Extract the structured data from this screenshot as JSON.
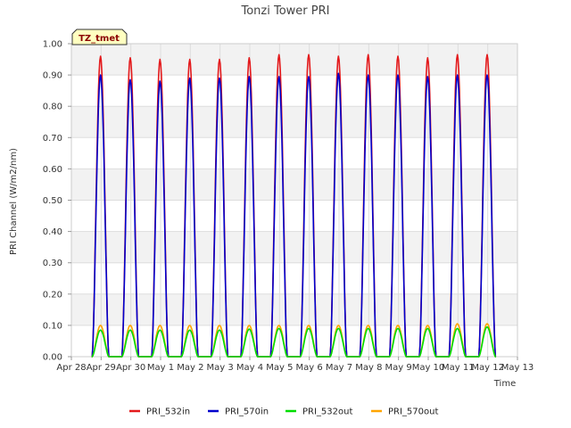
{
  "chart_data": {
    "type": "line",
    "title": "Tonzi Tower PRI",
    "xlabel": "Time",
    "ylabel": "PRI Channel (W/m2/nm)",
    "badge": "TZ_tmet",
    "x_tick_labels": [
      "Apr 28",
      "Apr 29",
      "Apr 30",
      "May 1",
      "May 2",
      "May 3",
      "May 4",
      "May 5",
      "May 6",
      "May 7",
      "May 8",
      "May 9",
      "May 10",
      "May 11",
      "May 12",
      "May 13"
    ],
    "x_range_days": [
      0,
      15
    ],
    "ylim": [
      0.0,
      1.0
    ],
    "y_ticks": [
      0.0,
      0.1,
      0.2,
      0.3,
      0.4,
      0.5,
      0.6,
      0.7,
      0.8,
      0.9,
      1.0
    ],
    "y_tick_labels": [
      "0.00",
      "0.10",
      "0.20",
      "0.30",
      "0.40",
      "0.50",
      "0.60",
      "0.70",
      "0.80",
      "0.90",
      "1.00"
    ],
    "grid": true,
    "legend_position": "bottom",
    "series": [
      {
        "name": "PRI_532in",
        "color": "#e41a1c",
        "daily_peaks": [
          0.96,
          0.955,
          0.95,
          0.95,
          0.95,
          0.955,
          0.965,
          0.965,
          0.96,
          0.965,
          0.96,
          0.955,
          0.965,
          0.965
        ]
      },
      {
        "name": "PRI_570in",
        "color": "#0000cc",
        "daily_peaks": [
          0.9,
          0.885,
          0.88,
          0.89,
          0.89,
          0.895,
          0.895,
          0.895,
          0.905,
          0.9,
          0.9,
          0.895,
          0.9,
          0.9
        ]
      },
      {
        "name": "PRI_532out",
        "color": "#00dd00",
        "daily_peaks": [
          0.085,
          0.085,
          0.085,
          0.085,
          0.085,
          0.088,
          0.09,
          0.09,
          0.09,
          0.09,
          0.09,
          0.09,
          0.09,
          0.095
        ]
      },
      {
        "name": "PRI_570out",
        "color": "#ffa500",
        "daily_peaks": [
          0.1,
          0.1,
          0.1,
          0.1,
          0.1,
          0.1,
          0.1,
          0.1,
          0.1,
          0.1,
          0.1,
          0.1,
          0.105,
          0.105
        ]
      }
    ],
    "day_start_index": 0.6
  }
}
